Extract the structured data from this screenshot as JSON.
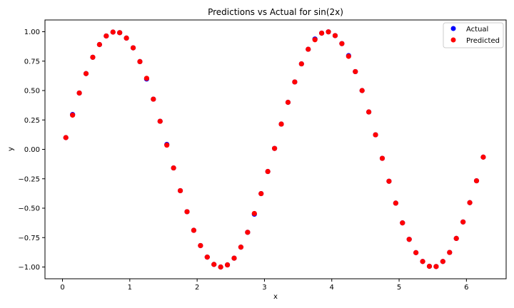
{
  "chart_data": {
    "type": "scatter",
    "title": "Predictions vs Actual for sin(2x)",
    "xlabel": "x",
    "ylabel": "y",
    "xlim": [
      -0.26,
      6.59
    ],
    "ylim": [
      -1.1,
      1.1
    ],
    "x_ticks": [
      0,
      1,
      2,
      3,
      4,
      5,
      6
    ],
    "y_ticks": [
      -1.0,
      -0.75,
      -0.5,
      -0.25,
      0.0,
      0.25,
      0.5,
      0.75,
      1.0
    ],
    "x_tick_labels": [
      "0",
      "1",
      "2",
      "3",
      "4",
      "5",
      "6"
    ],
    "y_tick_labels": [
      "−1.00",
      "−0.75",
      "−0.50",
      "−0.25",
      "0.00",
      "0.25",
      "0.50",
      "0.75",
      "1.00"
    ],
    "grid": false,
    "legend_position": "top-right",
    "x": [
      0.05,
      0.15,
      0.25,
      0.35,
      0.45,
      0.55,
      0.65,
      0.75,
      0.85,
      0.95,
      1.05,
      1.15,
      1.25,
      1.35,
      1.45,
      1.55,
      1.65,
      1.75,
      1.85,
      1.95,
      2.05,
      2.15,
      2.25,
      2.35,
      2.45,
      2.55,
      2.65,
      2.75,
      2.85,
      2.95,
      3.05,
      3.15,
      3.25,
      3.35,
      3.45,
      3.55,
      3.65,
      3.75,
      3.85,
      3.95,
      4.05,
      4.15,
      4.25,
      4.35,
      4.45,
      4.55,
      4.65,
      4.75,
      4.85,
      4.95,
      5.05,
      5.15,
      5.25,
      5.35,
      5.45,
      5.55,
      5.65,
      5.75,
      5.85,
      5.95,
      6.05,
      6.15,
      6.25
    ],
    "series": [
      {
        "name": "Actual",
        "color": "#0000ff",
        "values": [
          0.1,
          0.296,
          0.479,
          0.644,
          0.783,
          0.891,
          0.964,
          0.997,
          0.992,
          0.946,
          0.863,
          0.746,
          0.598,
          0.427,
          0.239,
          0.042,
          -0.158,
          -0.351,
          -0.53,
          -0.688,
          -0.818,
          -0.916,
          -0.978,
          -1.0,
          -0.982,
          -0.925,
          -0.831,
          -0.705,
          -0.551,
          -0.376,
          -0.188,
          0.008,
          0.215,
          0.4,
          0.573,
          0.727,
          0.851,
          0.938,
          0.988,
          0.999,
          0.967,
          0.899,
          0.797,
          0.661,
          0.5,
          0.318,
          0.124,
          -0.076,
          -0.271,
          -0.457,
          -0.625,
          -0.765,
          -0.878,
          -0.953,
          -0.994,
          -0.996,
          -0.953,
          -0.876,
          -0.757,
          -0.617,
          -0.453,
          -0.267,
          -0.066
        ]
      },
      {
        "name": "Predicted",
        "color": "#ff0000",
        "values": [
          0.1,
          0.291,
          0.479,
          0.644,
          0.783,
          0.891,
          0.964,
          0.997,
          0.992,
          0.946,
          0.863,
          0.746,
          0.604,
          0.427,
          0.239,
          0.036,
          -0.158,
          -0.351,
          -0.53,
          -0.688,
          -0.818,
          -0.916,
          -0.978,
          -1.0,
          -0.982,
          -0.925,
          -0.831,
          -0.705,
          -0.545,
          -0.376,
          -0.188,
          0.008,
          0.215,
          0.4,
          0.573,
          0.727,
          0.851,
          0.932,
          0.988,
          0.999,
          0.967,
          0.899,
          0.791,
          0.661,
          0.5,
          0.318,
          0.124,
          -0.076,
          -0.271,
          -0.457,
          -0.625,
          -0.765,
          -0.878,
          -0.953,
          -0.994,
          -0.996,
          -0.953,
          -0.876,
          -0.757,
          -0.617,
          -0.453,
          -0.267,
          -0.066
        ]
      }
    ]
  }
}
